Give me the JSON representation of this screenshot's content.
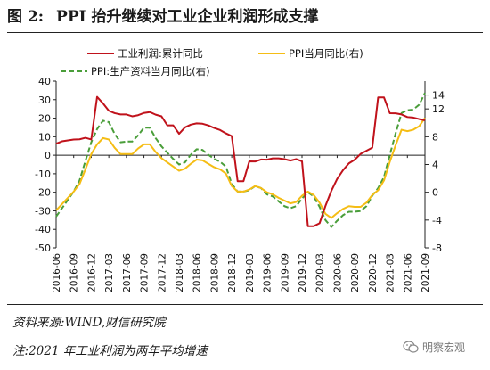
{
  "figure": {
    "label": "图 2:",
    "title": "PPI 抬升继续对工业企业利润形成支撑"
  },
  "source_note": "资料来源:WIND,财信研究院",
  "footnote": "注:2021 年工业利润为两年平均增速",
  "watermark": "明察宏观",
  "colors": {
    "profit": "#c0121b",
    "ppi_mom": "#f5bd15",
    "ppi_sub": "#4a9e3a"
  },
  "chart_data": {
    "type": "line",
    "title": "",
    "xlabel": "",
    "ylabel": "",
    "ylim": [
      -50,
      40
    ],
    "y2lim": [
      -8,
      16
    ],
    "yticks": [
      40,
      30,
      20,
      10,
      0,
      -10,
      -20,
      -30,
      -40,
      -50
    ],
    "y2ticks": [
      14,
      12,
      8,
      4,
      0,
      -4,
      -8
    ],
    "xticks": [
      "2016-06",
      "2016-09",
      "2016-12",
      "2017-03",
      "2017-06",
      "2017-09",
      "2017-12",
      "2018-03",
      "2018-06",
      "2018-09",
      "2018-12",
      "2019-03",
      "2019-06",
      "2019-09",
      "2019-12",
      "2020-03",
      "2020-06",
      "2020-09",
      "2020-12",
      "2021-03",
      "2021-06",
      "2021-09"
    ],
    "legend_position": "top",
    "grid": false,
    "series": [
      {
        "name": "工业利润:累计同比",
        "axis": "left",
        "color": "#c0121b",
        "dash": false,
        "x": [
          "2016-06",
          "2016-07",
          "2016-08",
          "2016-09",
          "2016-10",
          "2016-11",
          "2016-12",
          "2017-01",
          "2017-02",
          "2017-03",
          "2017-04",
          "2017-05",
          "2017-06",
          "2017-07",
          "2017-08",
          "2017-09",
          "2017-10",
          "2017-11",
          "2017-12",
          "2018-01",
          "2018-02",
          "2018-03",
          "2018-04",
          "2018-05",
          "2018-06",
          "2018-07",
          "2018-08",
          "2018-09",
          "2018-10",
          "2018-11",
          "2018-12",
          "2019-01",
          "2019-02",
          "2019-03",
          "2019-04",
          "2019-05",
          "2019-06",
          "2019-07",
          "2019-08",
          "2019-09",
          "2019-10",
          "2019-11",
          "2019-12",
          "2020-01",
          "2020-02",
          "2020-03",
          "2020-04",
          "2020-05",
          "2020-06",
          "2020-07",
          "2020-08",
          "2020-09",
          "2020-10",
          "2020-11",
          "2020-12",
          "2021-01",
          "2021-02",
          "2021-03",
          "2021-04",
          "2021-05",
          "2021-06",
          "2021-07",
          "2021-08",
          "2021-09"
        ],
        "values": [
          6.2,
          7.5,
          8.0,
          8.5,
          8.6,
          9.4,
          8.5,
          31.5,
          28.0,
          24.0,
          22.7,
          22.0,
          22.0,
          21.0,
          21.6,
          22.8,
          23.3,
          21.9,
          21.0,
          16.1,
          16.1,
          11.6,
          15.0,
          16.5,
          17.2,
          17.0,
          16.1,
          14.7,
          13.6,
          11.8,
          10.3,
          -14.0,
          -14.0,
          -3.3,
          -3.4,
          -2.3,
          -2.4,
          -1.7,
          -1.7,
          -2.1,
          -2.9,
          -2.1,
          -3.3,
          -38.3,
          -38.3,
          -36.7,
          -27.4,
          -19.3,
          -12.8,
          -8.1,
          -4.4,
          -2.4,
          0.7,
          2.4,
          4.1,
          31.2,
          31.2,
          22.7,
          22.6,
          22.0,
          20.6,
          20.3,
          19.5,
          18.8
        ]
      },
      {
        "name": "PPI当月同比(右)",
        "axis": "right",
        "color": "#f5bd15",
        "dash": false,
        "x": [
          "2016-06",
          "2016-07",
          "2016-08",
          "2016-09",
          "2016-10",
          "2016-11",
          "2016-12",
          "2017-01",
          "2017-02",
          "2017-03",
          "2017-04",
          "2017-05",
          "2017-06",
          "2017-07",
          "2017-08",
          "2017-09",
          "2017-10",
          "2017-11",
          "2017-12",
          "2018-01",
          "2018-02",
          "2018-03",
          "2018-04",
          "2018-05",
          "2018-06",
          "2018-07",
          "2018-08",
          "2018-09",
          "2018-10",
          "2018-11",
          "2018-12",
          "2019-01",
          "2019-02",
          "2019-03",
          "2019-04",
          "2019-05",
          "2019-06",
          "2019-07",
          "2019-08",
          "2019-09",
          "2019-10",
          "2019-11",
          "2019-12",
          "2020-01",
          "2020-02",
          "2020-03",
          "2020-04",
          "2020-05",
          "2020-06",
          "2020-07",
          "2020-08",
          "2020-09",
          "2020-10",
          "2020-11",
          "2020-12",
          "2021-01",
          "2021-02",
          "2021-03",
          "2021-04",
          "2021-05",
          "2021-06",
          "2021-07",
          "2021-08",
          "2021-09"
        ],
        "values": [
          -2.6,
          -1.7,
          -0.8,
          0.1,
          1.2,
          3.3,
          5.5,
          6.9,
          7.8,
          7.6,
          6.4,
          5.5,
          5.5,
          5.5,
          6.3,
          6.9,
          6.9,
          5.8,
          4.9,
          4.3,
          3.7,
          3.1,
          3.4,
          4.1,
          4.7,
          4.6,
          4.1,
          3.6,
          3.3,
          2.7,
          0.9,
          0.1,
          0.1,
          0.4,
          0.9,
          0.6,
          0.0,
          -0.3,
          -0.8,
          -1.2,
          -1.6,
          -1.4,
          -0.5,
          0.1,
          -0.4,
          -1.5,
          -3.1,
          -3.7,
          -3.0,
          -2.4,
          -2.0,
          -2.1,
          -2.1,
          -1.5,
          -0.4,
          0.3,
          1.7,
          4.4,
          6.8,
          9.0,
          8.8,
          9.0,
          9.5,
          10.7
        ]
      },
      {
        "name": "PPI:生产资料当月同比(右)",
        "axis": "right",
        "color": "#4a9e3a",
        "dash": true,
        "x": [
          "2016-06",
          "2016-07",
          "2016-08",
          "2016-09",
          "2016-10",
          "2016-11",
          "2016-12",
          "2017-01",
          "2017-02",
          "2017-03",
          "2017-04",
          "2017-05",
          "2017-06",
          "2017-07",
          "2017-08",
          "2017-09",
          "2017-10",
          "2017-11",
          "2017-12",
          "2018-01",
          "2018-02",
          "2018-03",
          "2018-04",
          "2018-05",
          "2018-06",
          "2018-07",
          "2018-08",
          "2018-09",
          "2018-10",
          "2018-11",
          "2018-12",
          "2019-01",
          "2019-02",
          "2019-03",
          "2019-04",
          "2019-05",
          "2019-06",
          "2019-07",
          "2019-08",
          "2019-09",
          "2019-10",
          "2019-11",
          "2019-12",
          "2020-01",
          "2020-02",
          "2020-03",
          "2020-04",
          "2020-05",
          "2020-06",
          "2020-07",
          "2020-08",
          "2020-09",
          "2020-10",
          "2020-11",
          "2020-12",
          "2021-01",
          "2021-02",
          "2021-03",
          "2021-04",
          "2021-05",
          "2021-06",
          "2021-07",
          "2021-08",
          "2021-09"
        ],
        "values": [
          -3.5,
          -2.3,
          -1.1,
          0.1,
          1.7,
          4.5,
          7.2,
          9.1,
          10.3,
          10.1,
          8.4,
          7.2,
          7.3,
          7.3,
          8.2,
          9.3,
          9.3,
          7.8,
          6.6,
          5.7,
          4.8,
          4.0,
          4.3,
          5.4,
          6.2,
          6.1,
          5.4,
          4.8,
          4.4,
          3.7,
          1.2,
          0.1,
          0.1,
          0.3,
          0.9,
          0.6,
          -0.3,
          -0.6,
          -1.3,
          -2.0,
          -2.3,
          -2.0,
          -0.9,
          0.0,
          -0.6,
          -2.1,
          -4.0,
          -5.0,
          -4.1,
          -3.3,
          -2.8,
          -2.8,
          -2.7,
          -2.0,
          -0.5,
          0.6,
          2.2,
          5.4,
          8.5,
          11.4,
          11.8,
          11.9,
          12.6,
          14.3
        ]
      }
    ]
  }
}
